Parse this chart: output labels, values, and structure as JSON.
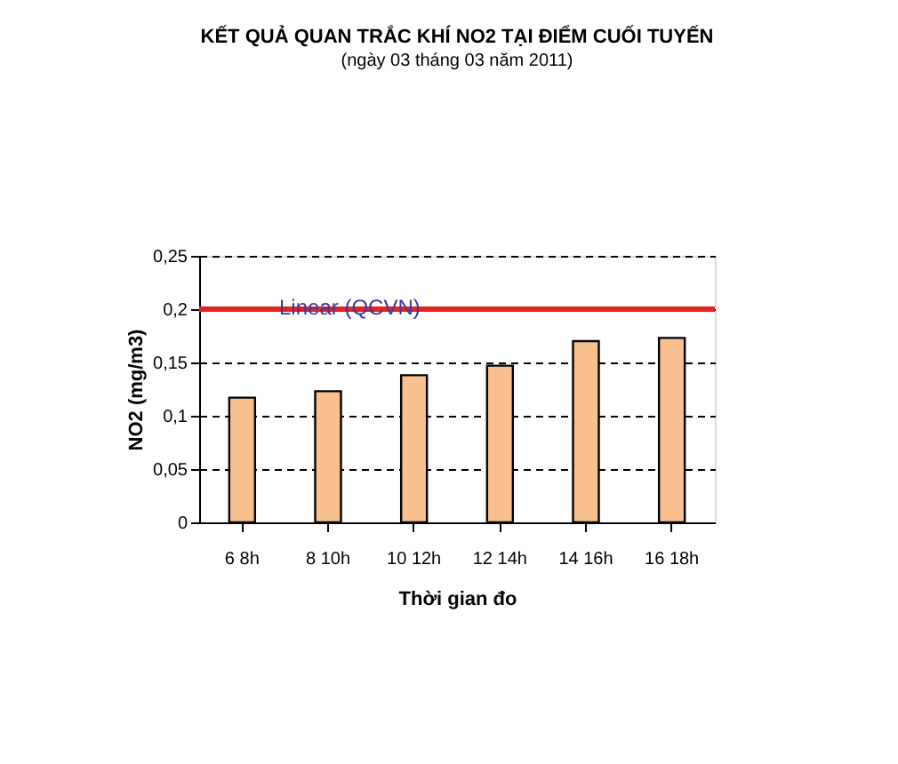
{
  "chart_data": {
    "type": "bar",
    "title": "KẾT QUẢ QUAN TRẮC KHÍ NO2 TẠI ĐIỂM CUỐI TUYẾN",
    "subtitle": "(ngày 03 tháng 03 năm 2011)",
    "xlabel": "Thời gian đo",
    "ylabel": "NO2 (mg/m3)",
    "categories": [
      "6 8h",
      "8 10h",
      "10 12h",
      "12 14h",
      "14 16h",
      "16 18h"
    ],
    "values": [
      0.117,
      0.123,
      0.138,
      0.147,
      0.17,
      0.173
    ],
    "color": "#f9c08f",
    "ylim": [
      0,
      0.25
    ],
    "yticks": [
      {
        "value": 0,
        "label": "0"
      },
      {
        "value": 0.05,
        "label": "0,05"
      },
      {
        "value": 0.1,
        "label": "0,1"
      },
      {
        "value": 0.15,
        "label": "0,15"
      },
      {
        "value": 0.2,
        "label": "0,2"
      },
      {
        "value": 0.25,
        "label": "0,25"
      }
    ],
    "ref_lines": [
      {
        "axis": "y",
        "value": 0.2,
        "label": "Linear (QCVN)",
        "color": "#e8201f"
      }
    ],
    "grid": "y"
  }
}
